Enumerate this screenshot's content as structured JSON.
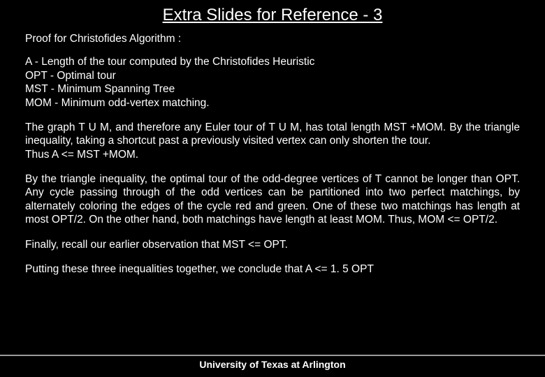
{
  "slide": {
    "title": "Extra Slides for Reference - 3",
    "heading": "Proof for Christofides Algorithm :",
    "definitions": {
      "d1": " A - Length of the tour computed by the Christofides Heuristic",
      "d2": "OPT - Optimal tour",
      "d3": " MST - Minimum Spanning Tree",
      "d4": " MOM - Minimum odd-vertex matching."
    },
    "para1_l1": "The graph T U M, and therefore any Euler tour of T U M, has total length MST +MOM.",
    "para1_l2": "By the triangle inequality, taking a shortcut past a previously visited vertex can only shorten the tour.",
    "para1_l3": "Thus A <=  MST +MOM.",
    "para2": "By the triangle inequality, the optimal tour of the odd-degree vertices of T cannot be longer than OPT. Any cycle passing through of the odd vertices can be partitioned into two perfect matchings, by alternately coloring the edges of the cycle red and green. One of these two matchings has length at most OPT/2. On the other hand, both matchings have length at least MOM. Thus, MOM  <= OPT/2.",
    "para3": "Finally, recall our earlier observation that MST  <= OPT.",
    "para4": "Putting these three inequalities together, we conclude that A  <= 1. 5  OPT",
    "footer": "University of Texas at Arlington"
  },
  "colors": {
    "background": "#000000",
    "text": "#ffffff",
    "divider": "#9a9a9a"
  }
}
